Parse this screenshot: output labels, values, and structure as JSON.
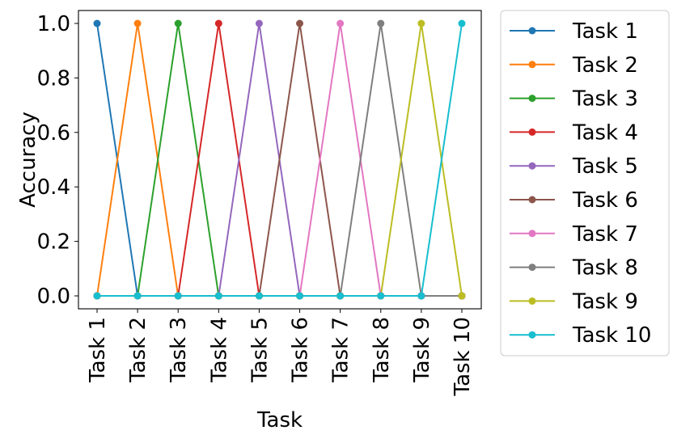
{
  "chart_data": {
    "type": "line",
    "xlabel": "Task",
    "ylabel": "Accuracy",
    "categories": [
      "Task 1",
      "Task 2",
      "Task 3",
      "Task 4",
      "Task 5",
      "Task 6",
      "Task 7",
      "Task 8",
      "Task 9",
      "Task 10"
    ],
    "ylim": [
      -0.05,
      1.05
    ],
    "yticks": [
      "0.0",
      "0.2",
      "0.4",
      "0.6",
      "0.8",
      "1.0"
    ],
    "legend_position": "outside-right",
    "series": [
      {
        "name": "Task 1",
        "color": "#1f77b4",
        "values": [
          1,
          0,
          0,
          0,
          0,
          0,
          0,
          0,
          0,
          0
        ]
      },
      {
        "name": "Task 2",
        "color": "#ff7f0e",
        "values": [
          0,
          1,
          0,
          0,
          0,
          0,
          0,
          0,
          0,
          0
        ]
      },
      {
        "name": "Task 3",
        "color": "#2ca02c",
        "values": [
          0,
          0,
          1,
          0,
          0,
          0,
          0,
          0,
          0,
          0
        ]
      },
      {
        "name": "Task 4",
        "color": "#d62728",
        "values": [
          0,
          0,
          0,
          1,
          0,
          0,
          0,
          0,
          0,
          0
        ]
      },
      {
        "name": "Task 5",
        "color": "#9467bd",
        "values": [
          0,
          0,
          0,
          0,
          1,
          0,
          0,
          0,
          0,
          0
        ]
      },
      {
        "name": "Task 6",
        "color": "#8c564b",
        "values": [
          0,
          0,
          0,
          0,
          0,
          1,
          0,
          0,
          0,
          0
        ]
      },
      {
        "name": "Task 7",
        "color": "#e377c2",
        "values": [
          0,
          0,
          0,
          0,
          0,
          0,
          1,
          0,
          0,
          0
        ]
      },
      {
        "name": "Task 8",
        "color": "#7f7f7f",
        "values": [
          0,
          0,
          0,
          0,
          0,
          0,
          0,
          1,
          0,
          0
        ]
      },
      {
        "name": "Task 9",
        "color": "#bcbd22",
        "values": [
          0,
          0,
          0,
          0,
          0,
          0,
          0,
          0,
          1,
          0
        ]
      },
      {
        "name": "Task 10",
        "color": "#17becf",
        "values": [
          0,
          0,
          0,
          0,
          0,
          0,
          0,
          0,
          0,
          1
        ]
      }
    ]
  }
}
